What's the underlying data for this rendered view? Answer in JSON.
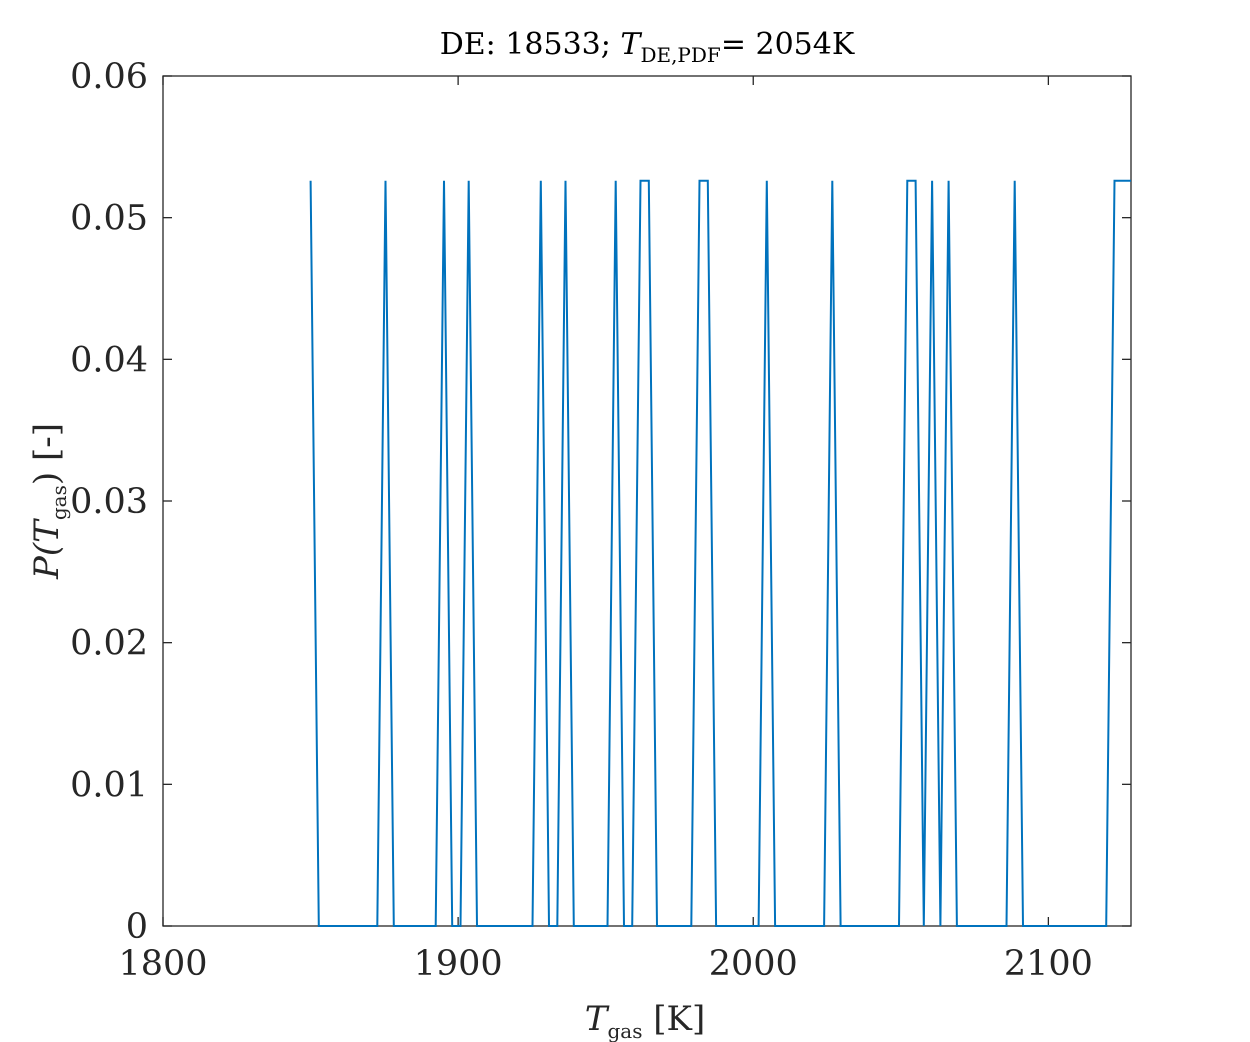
{
  "chart_data": {
    "type": "line",
    "title": {
      "prefix": "DE: 18533; ",
      "var": "T",
      "sub": "DE,PDF",
      "suffix": "= 2054K"
    },
    "xlabel": {
      "var": "T",
      "sub": "gas",
      "suffix": " [K]"
    },
    "ylabel": {
      "prefix": "P(",
      "var": "T",
      "sub": "gas",
      "suffix": ") [-]"
    },
    "xlim": [
      1800,
      2128
    ],
    "ylim": [
      0,
      0.06
    ],
    "xticks": [
      "1800",
      "1900",
      "2000",
      "2100"
    ],
    "xtick_values": [
      1800,
      1900,
      2000,
      2100
    ],
    "yticks": [
      "0",
      "0.01",
      "0.02",
      "0.03",
      "0.04",
      "0.05",
      "0.06"
    ],
    "ytick_values": [
      0,
      0.01,
      0.02,
      0.03,
      0.04,
      0.05,
      0.06
    ],
    "grid": false,
    "colors": {
      "line": "#0072BD",
      "axes": "#262626"
    },
    "series": [
      {
        "x": [
          1850.0,
          1852.8,
          1872.6,
          1875.4,
          1878.2,
          1892.4,
          1895.2,
          1898.0,
          1900.8,
          1903.6,
          1906.4,
          1925.2,
          1928.0,
          1930.8,
          1933.6,
          1936.4,
          1939.2,
          1950.6,
          1953.4,
          1956.2,
          1959.0,
          1961.8,
          1964.6,
          1967.4,
          1979.0,
          1981.8,
          1984.6,
          1987.4,
          2001.8,
          2004.6,
          2007.4,
          2024.0,
          2026.8,
          2029.6,
          2049.4,
          2052.2,
          2055.0,
          2057.8,
          2060.6,
          2063.4,
          2066.2,
          2069.0,
          2071.8,
          2085.8,
          2088.6,
          2091.4,
          2119.6,
          2122.4,
          2128.0
        ],
        "y": [
          0.0526,
          0,
          0,
          0.0526,
          0,
          0,
          0.0526,
          0,
          0,
          0.0526,
          0,
          0,
          0.0526,
          0,
          0,
          0.0526,
          0,
          0,
          0.0526,
          0,
          0,
          0.0526,
          0.0526,
          0,
          0,
          0.0526,
          0.0526,
          0,
          0,
          0.0526,
          0,
          0,
          0.0526,
          0,
          0,
          0.0526,
          0.0526,
          0,
          0.0526,
          0,
          0.0526,
          0,
          0,
          0,
          0.0526,
          0,
          0,
          0.0526,
          0.0526
        ]
      }
    ]
  }
}
